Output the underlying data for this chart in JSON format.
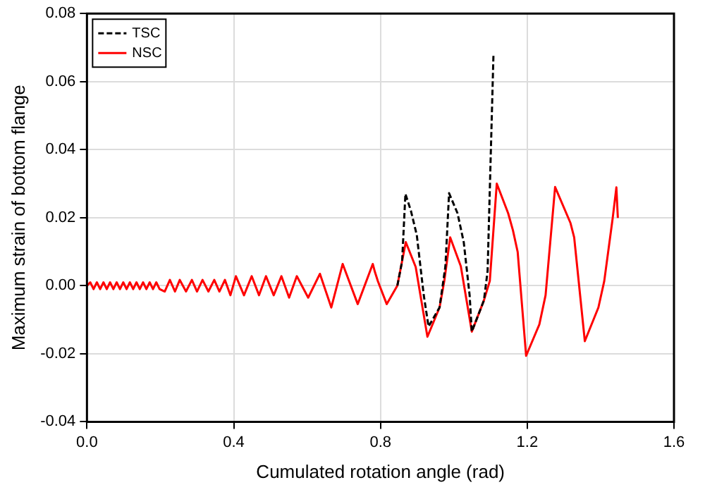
{
  "chart_data": {
    "type": "line",
    "xlabel": "Cumulated rotation angle (rad)",
    "ylabel": "Maximum strain of bottom flange",
    "xlim": [
      0,
      1.6
    ],
    "xticks": [
      {
        "value": 0,
        "label": "0.0"
      },
      0.4,
      0.8,
      1.2,
      1.6
    ],
    "ylim": [
      -0.04,
      0.08
    ],
    "yticks": [
      -0.04,
      -0.02,
      {
        "value": 0,
        "label": "0.00"
      },
      0.02,
      0.04,
      0.06,
      0.08
    ],
    "grid": true,
    "legend": "top left",
    "marker": "none",
    "series": [
      {
        "name": "TSC",
        "color": "#000000",
        "line_style": "dashed",
        "x": [
          0.846,
          0.859,
          0.868,
          0.883,
          0.899,
          0.918,
          0.931,
          0.961,
          0.977,
          0.987,
          1.01,
          1.027,
          1.043,
          1.049,
          1.082,
          1.092,
          1.108
        ],
        "values": [
          0,
          0.0072,
          0.027,
          0.022,
          0.0149,
          -0.0028,
          -0.012,
          -0.0064,
          0.0057,
          0.0272,
          0.0213,
          0.0128,
          -0.0028,
          -0.0135,
          -0.0043,
          0.0043,
          0.068
        ]
      },
      {
        "name": "NSC",
        "color": "#ff0000",
        "line_style": "solid",
        "x": [
          0,
          0.009,
          0.018,
          0.027,
          0.036,
          0.045,
          0.054,
          0.063,
          0.072,
          0.081,
          0.09,
          0.099,
          0.108,
          0.117,
          0.126,
          0.135,
          0.144,
          0.153,
          0.162,
          0.171,
          0.18,
          0.189,
          0.198,
          0.212,
          0.226,
          0.24,
          0.253,
          0.27,
          0.286,
          0.3,
          0.315,
          0.331,
          0.347,
          0.361,
          0.376,
          0.391,
          0.406,
          0.428,
          0.449,
          0.469,
          0.488,
          0.509,
          0.53,
          0.551,
          0.572,
          0.603,
          0.635,
          0.666,
          0.697,
          0.738,
          0.779,
          0.785,
          0.793,
          0.817,
          0.846,
          0.869,
          0.896,
          0.928,
          0.961,
          0.974,
          0.99,
          1.019,
          1.049,
          1.082,
          1.098,
          1.117,
          1.148,
          1.161,
          1.174,
          1.197,
          1.233,
          1.25,
          1.276,
          1.318,
          1.328,
          1.357,
          1.394,
          1.41,
          1.433,
          1.443,
          1.447
        ],
        "values": [
          0,
          0.001,
          -0.001,
          0.001,
          -0.001,
          0.001,
          -0.001,
          0.001,
          -0.001,
          0.001,
          -0.001,
          0.001,
          -0.001,
          0.001,
          -0.001,
          0.001,
          -0.001,
          0.001,
          -0.001,
          0.001,
          -0.001,
          0.001,
          -0.001,
          -0.0017,
          0.0017,
          -0.0017,
          0.0017,
          -0.0017,
          0.0017,
          -0.0017,
          0.0017,
          -0.0017,
          0.0017,
          -0.0017,
          0.0017,
          -0.0028,
          0.0028,
          -0.0028,
          0.0028,
          -0.0028,
          0.0028,
          -0.0028,
          0.0028,
          -0.0035,
          0.0028,
          -0.0035,
          0.0035,
          -0.0064,
          0.0064,
          -0.0054,
          0.0064,
          0.004,
          0.0013,
          -0.0054,
          0,
          0.0128,
          0.0055,
          -0.015,
          -0.0064,
          0.0014,
          0.0142,
          0.0057,
          -0.0135,
          -0.0043,
          0.0014,
          0.03,
          0.0213,
          0.0163,
          0.0099,
          -0.0206,
          -0.0114,
          -0.0028,
          0.029,
          0.0184,
          0.0142,
          -0.0163,
          -0.0064,
          0.0014,
          0.0199,
          0.0289,
          0.0199
        ]
      }
    ]
  }
}
